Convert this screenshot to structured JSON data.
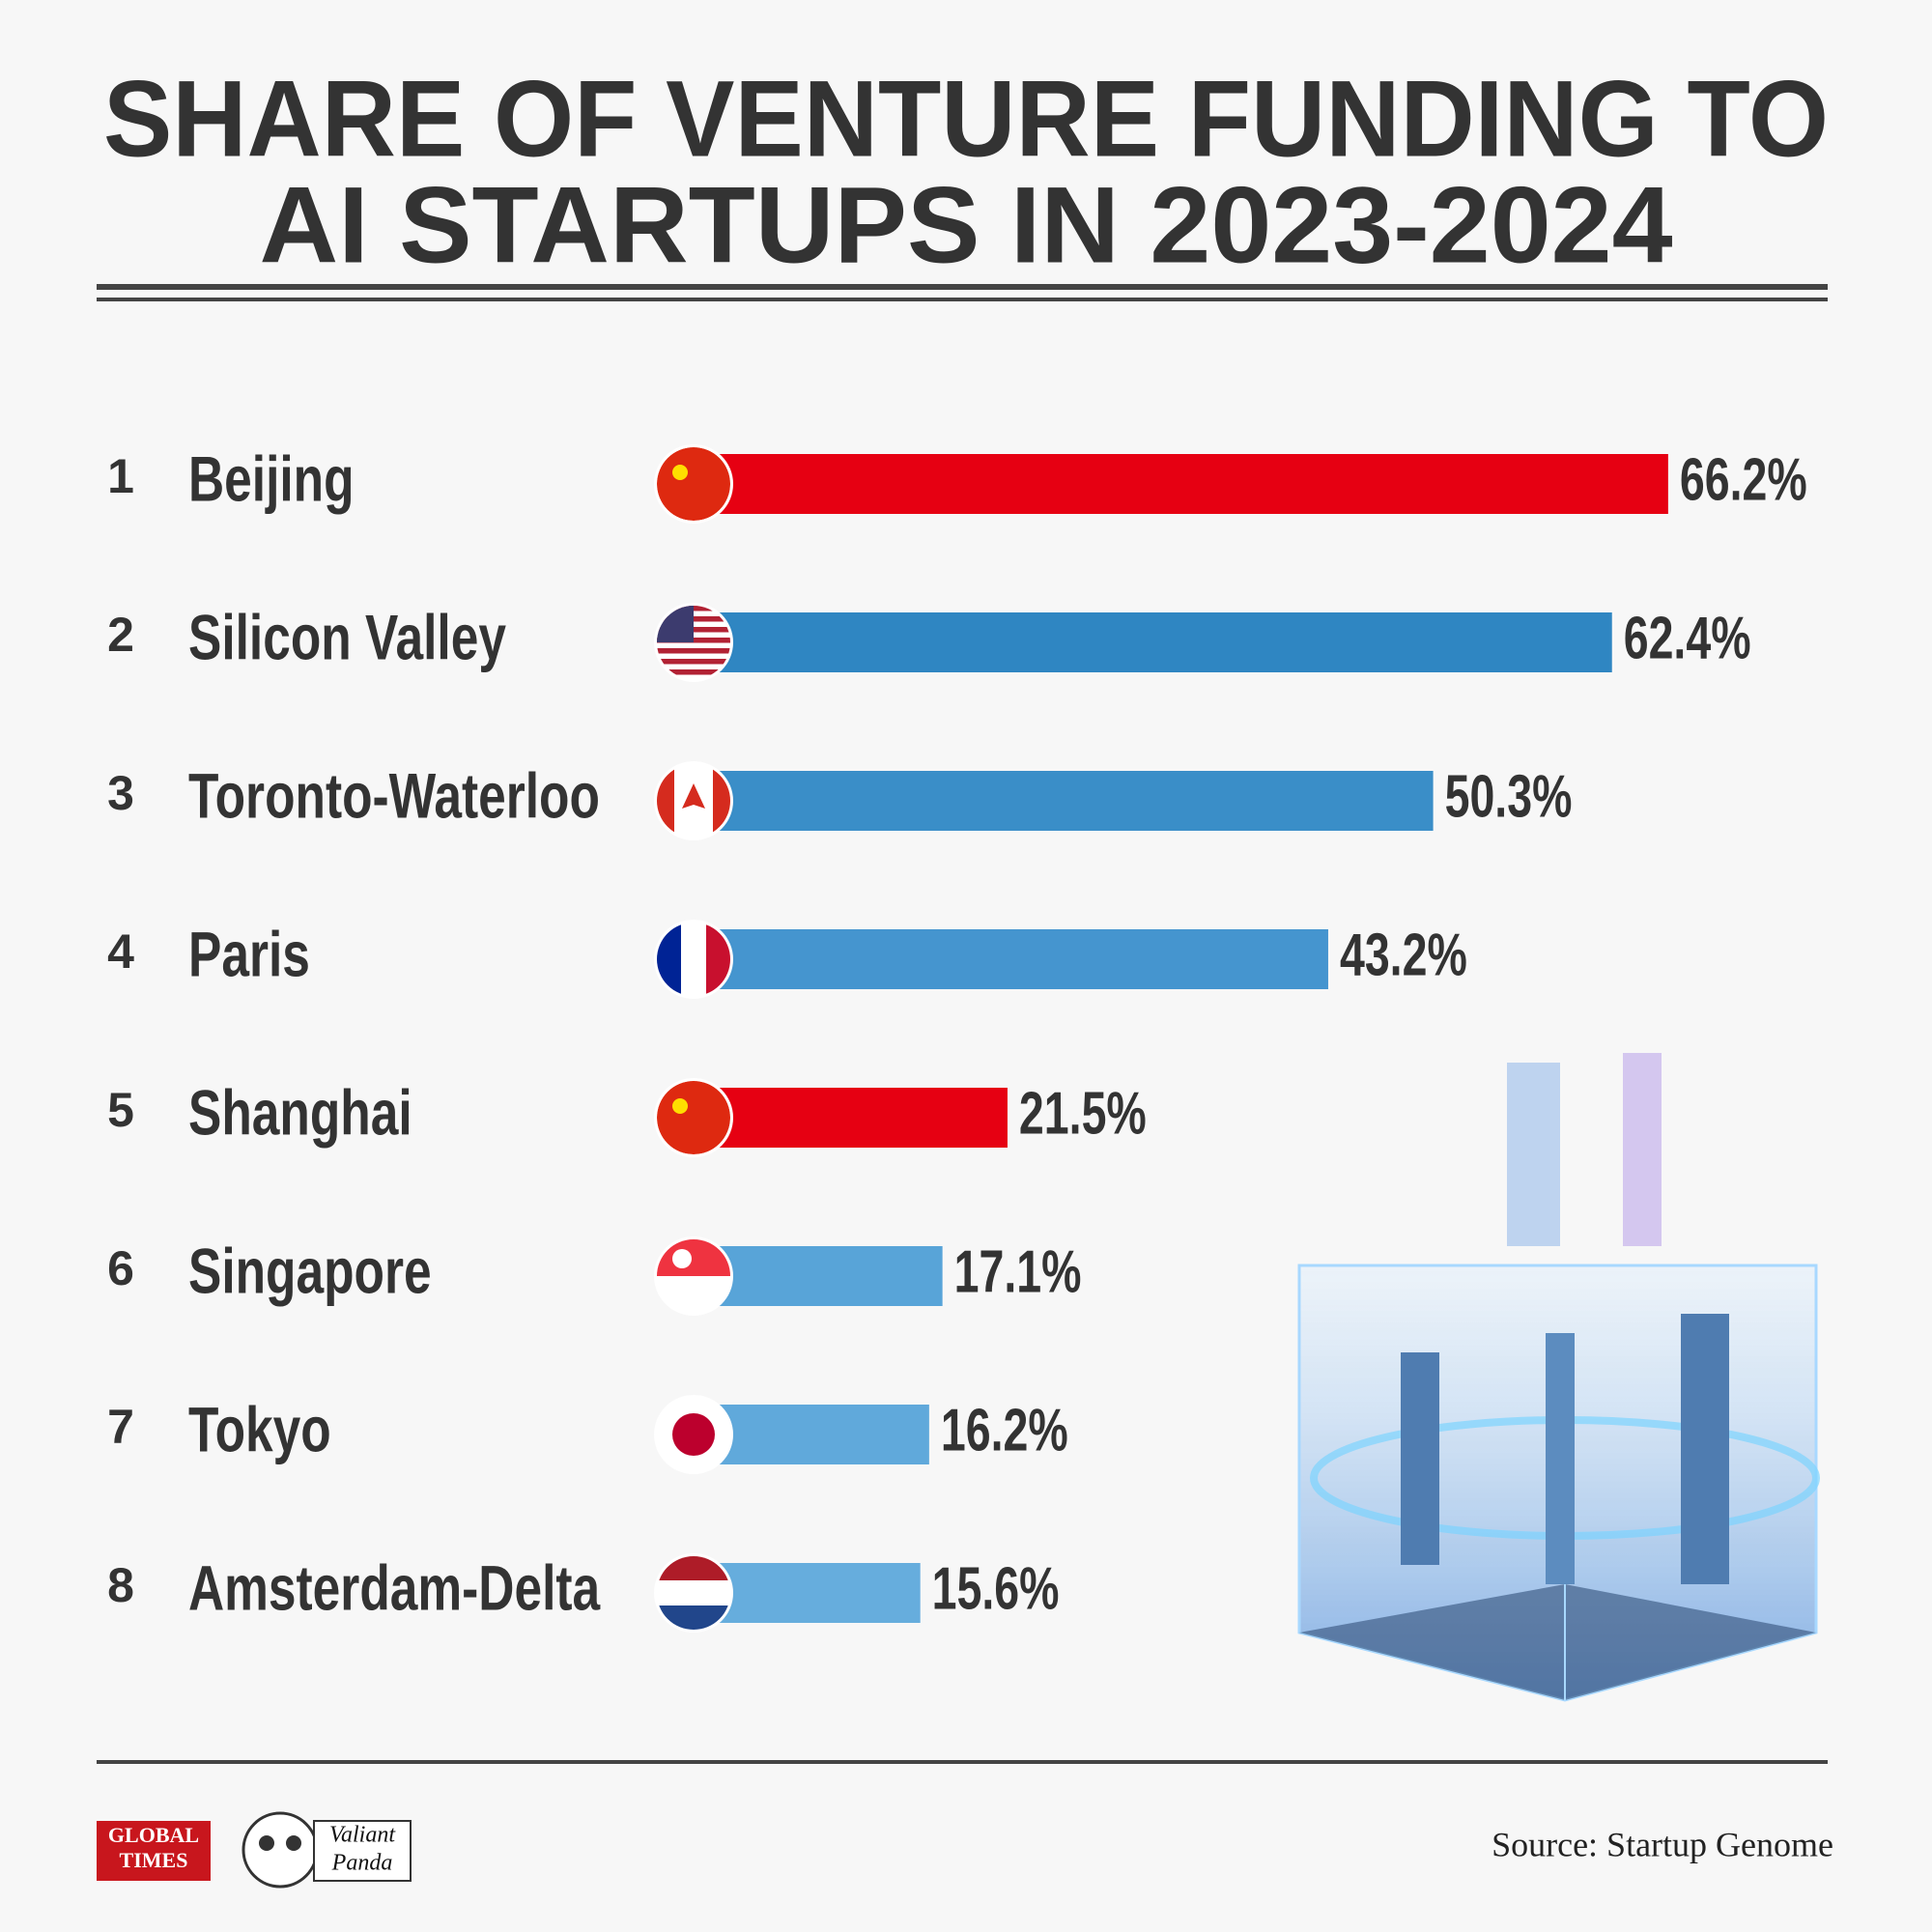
{
  "chart_data": {
    "type": "bar",
    "title": [
      "SHARE OF VENTURE FUNDING TO",
      "AI STARTUPS IN 2023-2024"
    ],
    "ranks": [
      1,
      2,
      3,
      4,
      5,
      6,
      7,
      8
    ],
    "categories": [
      "Beijing",
      "Silicon Valley",
      "Toronto-Waterloo",
      "Paris",
      "Shanghai",
      "Singapore",
      "Tokyo",
      "Amsterdam-Delta"
    ],
    "values": [
      66.2,
      62.4,
      50.3,
      43.2,
      21.5,
      17.1,
      16.2,
      15.6
    ],
    "value_labels": [
      "66.2%",
      "62.4%",
      "50.3%",
      "43.2%",
      "21.5%",
      "17.1%",
      "16.2%",
      "15.6%"
    ],
    "colors": [
      "#e60012",
      "#2f86c2",
      "#3a8ec8",
      "#4595cf",
      "#e60012",
      "#58a4d8",
      "#60a9db",
      "#66addd"
    ],
    "source": "Source: Startup Genome",
    "logos": [
      "GLOBAL",
      "TIMES",
      "Valiant",
      "Panda"
    ]
  }
}
